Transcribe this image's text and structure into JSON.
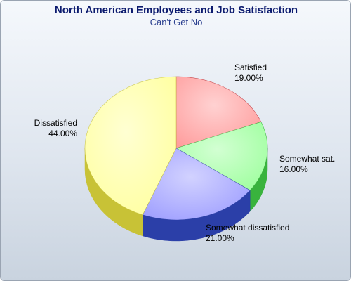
{
  "chart_data": {
    "type": "pie",
    "title": "North American Employees and Job Satisfaction",
    "subtitle": "Can't Get No",
    "three_d": true,
    "slices": [
      {
        "name": "Satisfied",
        "value": 19.0,
        "label": "19.00%",
        "color": "#ff9a9a",
        "side_color": "#c0393f"
      },
      {
        "name": "Somewhat sat.",
        "value": 16.0,
        "label": "16.00%",
        "color": "#9cff9c",
        "side_color": "#39b33d"
      },
      {
        "name": "Somewhat dissatisfied",
        "value": 21.0,
        "label": "21.00%",
        "color": "#9b9bff",
        "side_color": "#2b3fa8"
      },
      {
        "name": "Dissatisfied",
        "value": 44.0,
        "label": "44.00%",
        "color": "#ffff9c",
        "side_color": "#c8c236"
      }
    ]
  }
}
